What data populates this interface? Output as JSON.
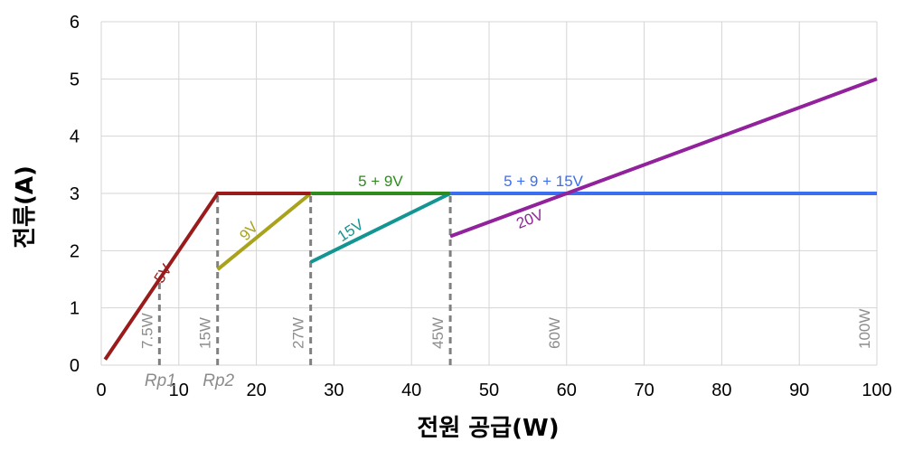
{
  "chart_data": {
    "type": "line",
    "xlabel": "전원 공급(W)",
    "ylabel": "전류(A)",
    "xlim": [
      0,
      100
    ],
    "ylim": [
      0,
      6
    ],
    "x_ticks": [
      "0",
      "10",
      "20",
      "30",
      "40",
      "50",
      "60",
      "70",
      "80",
      "90",
      "100"
    ],
    "y_ticks": [
      "0",
      "1",
      "2",
      "3",
      "4",
      "5",
      "6"
    ],
    "grid": true,
    "series": [
      {
        "name": "5V",
        "color": "#9a1b1b",
        "points": [
          [
            0.5,
            0.1
          ],
          [
            15,
            3
          ],
          [
            27,
            3
          ]
        ]
      },
      {
        "name": "9V",
        "color": "#a9a21b",
        "points": [
          [
            15,
            1.67
          ],
          [
            27,
            3
          ]
        ]
      },
      {
        "name": "5 + 9V",
        "color": "#2e8b1e",
        "points": [
          [
            27,
            3
          ],
          [
            45,
            3
          ]
        ]
      },
      {
        "name": "15V",
        "color": "#139593",
        "points": [
          [
            27,
            1.8
          ],
          [
            45,
            3
          ]
        ]
      },
      {
        "name": "5 + 9 + 15V",
        "color": "#3b6ef0",
        "points": [
          [
            45,
            3
          ],
          [
            100,
            3
          ]
        ]
      },
      {
        "name": "20V",
        "color": "#92229b",
        "points": [
          [
            45,
            2.25
          ],
          [
            100,
            5
          ]
        ]
      }
    ],
    "power_markers": [
      {
        "x": 7.5,
        "label": "7.5W"
      },
      {
        "x": 15,
        "label": "15W"
      },
      {
        "x": 27,
        "label": "27W"
      },
      {
        "x": 45,
        "label": "45W"
      },
      {
        "x": 60,
        "label": "60W"
      },
      {
        "x": 100,
        "label": "100W"
      }
    ],
    "dashed_markers": [
      {
        "x": 7.5,
        "y_top": 1.5
      },
      {
        "x": 15,
        "y_top": 3
      },
      {
        "x": 27,
        "y_top": 3
      },
      {
        "x": 45,
        "y_top": 3
      }
    ],
    "annotations": [
      {
        "text": "Rp1",
        "x": 7.5
      },
      {
        "text": "Rp2",
        "x": 15
      }
    ]
  }
}
